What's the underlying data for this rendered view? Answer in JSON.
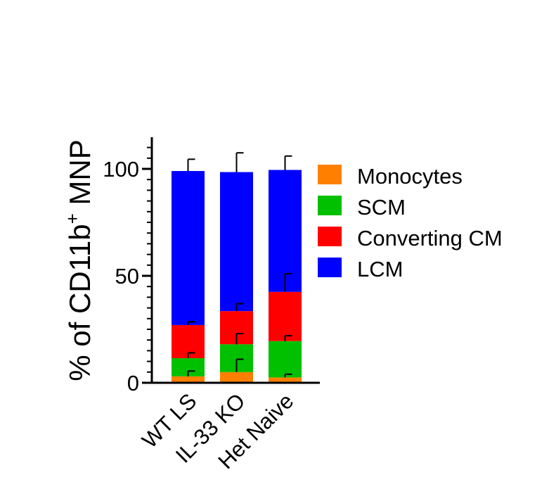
{
  "chart_data": {
    "type": "bar",
    "stacked": true,
    "categories": [
      "WT LS",
      "IL-33 KO",
      "Het Naive"
    ],
    "ylabel": "% of CD11b",
    "ylabel_superscript": "+",
    "ylabel_suffix": " MNP",
    "xlabel": "",
    "title": "",
    "ylim": [
      0,
      115
    ],
    "yticks": [
      0,
      50,
      100
    ],
    "grid": false,
    "legend_position": "right",
    "series": [
      {
        "name": "Monocytes",
        "color": "#FF8000",
        "values": [
          3,
          5,
          2.5
        ],
        "error": [
          2.5,
          6,
          1.5
        ]
      },
      {
        "name": "SCM",
        "color": "#00C000",
        "values": [
          8.5,
          13,
          17
        ],
        "error": [
          2.5,
          5,
          2.5
        ]
      },
      {
        "name": "Converting CM",
        "color": "#FF0000",
        "values": [
          15.5,
          15.5,
          23
        ],
        "error": [
          1.5,
          3.5,
          8.5
        ]
      },
      {
        "name": "LCM",
        "color": "#0000FF",
        "values": [
          72,
          65,
          57
        ],
        "error": [
          5.5,
          9,
          6.5
        ]
      }
    ]
  }
}
